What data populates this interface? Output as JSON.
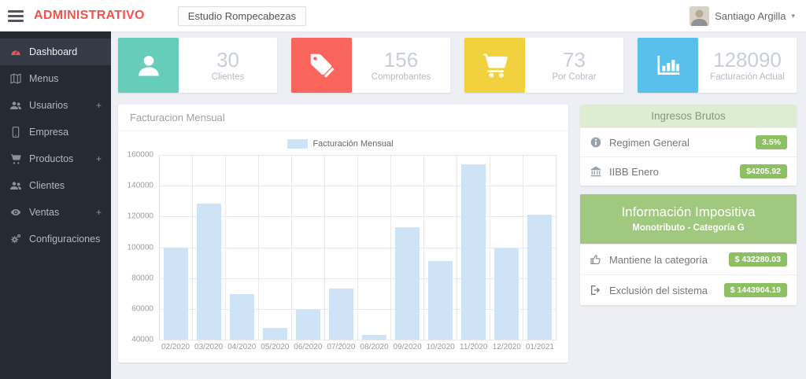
{
  "header": {
    "brand": "ADMINISTRATIVO",
    "company": "Estudio Rompecabezas",
    "user_name": "Santiago Argilla"
  },
  "icons": {
    "caret": "▾",
    "plus": "+"
  },
  "sidebar": {
    "items": [
      {
        "label": "Dashboard",
        "icon": "gauge-icon",
        "active": true
      },
      {
        "label": "Menus",
        "icon": "map-icon"
      },
      {
        "label": "Usuarios",
        "icon": "users-icon",
        "expandable": true
      },
      {
        "label": "Empresa",
        "icon": "tablet-icon"
      },
      {
        "label": "Productos",
        "icon": "cart-icon",
        "expandable": true
      },
      {
        "label": "Clientes",
        "icon": "users-icon"
      },
      {
        "label": "Ventas",
        "icon": "eye-icon",
        "expandable": true
      },
      {
        "label": "Configuraciones",
        "icon": "gears-icon"
      }
    ]
  },
  "stats": [
    {
      "value": "30",
      "label": "Clientes",
      "icon": "person-icon",
      "color": "#65cdb9"
    },
    {
      "value": "156",
      "label": "Comprobantes",
      "icon": "tag-icon",
      "color": "#f9655b"
    },
    {
      "value": "73",
      "label": "Por Cobrar",
      "icon": "cart-icon",
      "color": "#f1d13e"
    },
    {
      "value": "128090",
      "label": "Facturación Actual",
      "icon": "bar-chart-icon",
      "color": "#58c0ea"
    }
  ],
  "chart_panel": {
    "title": "Facturacion Mensual",
    "legend_label": "Facturación Mensual"
  },
  "chart_data": {
    "type": "bar",
    "title": "Facturación Mensual",
    "categories": [
      "02/2020",
      "03/2020",
      "04/2020",
      "05/2020",
      "06/2020",
      "07/2020",
      "08/2020",
      "09/2020",
      "10/2020",
      "11/2020",
      "12/2020",
      "01/2021"
    ],
    "values": [
      100000,
      128500,
      69500,
      47500,
      59500,
      73000,
      43000,
      113000,
      91000,
      154000,
      99000,
      121000
    ],
    "xlabel": "",
    "ylabel": "",
    "ylim": [
      40000,
      160000
    ],
    "ytick_step": 20000,
    "grid": true,
    "legend_position": "top",
    "bar_color": "#cfe3f7"
  },
  "ingresos_brutos": {
    "title": "Ingresos Brutos",
    "rows": [
      {
        "icon": "info-icon",
        "label": "Regimen General",
        "badge": "3.5%"
      },
      {
        "icon": "bank-icon",
        "label": "IIBB Enero",
        "badge": "$4205.92"
      }
    ]
  },
  "info_impositiva": {
    "title": "Información Impositiva",
    "subtitle": "Monotributo - Categoría G",
    "rows": [
      {
        "icon": "thumbs-up-icon",
        "label": "Mantiene la categoría",
        "badge": "$ 432280.03"
      },
      {
        "icon": "sign-out-icon",
        "label": "Exclusión del sistema",
        "badge": "$ 1443904.19"
      }
    ]
  },
  "colors": {
    "brand": "#f0544c",
    "sidebar_bg": "#262b33",
    "sidebar_active_bg": "#343b46",
    "badge_green": "#8dc063",
    "panel_header_light_green": "#dcedd2",
    "panel_header_green": "#a0c87e",
    "bar_fill": "#cfe3f7",
    "stat_teal": "#65cdb9",
    "stat_red": "#f9655b",
    "stat_yellow": "#f1d13e",
    "stat_blue": "#58c0ea"
  }
}
